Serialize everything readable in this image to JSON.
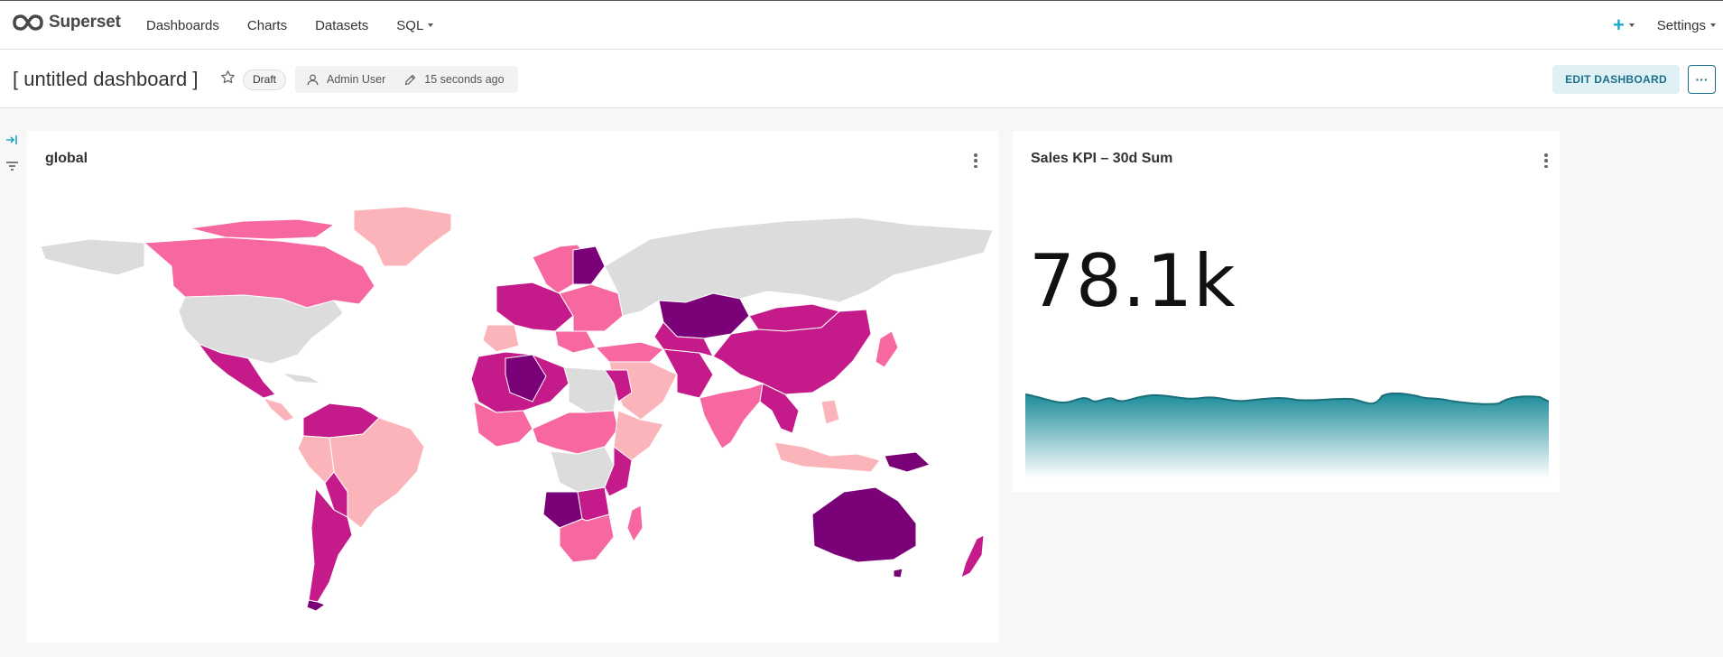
{
  "app": {
    "name": "Superset"
  },
  "nav": {
    "items": [
      {
        "label": "Dashboards"
      },
      {
        "label": "Charts"
      },
      {
        "label": "Datasets"
      },
      {
        "label": "SQL"
      }
    ],
    "settings_label": "Settings",
    "plus_label": "+"
  },
  "dashboard": {
    "title": "[ untitled dashboard ]",
    "status": "Draft",
    "owner": "Admin User",
    "modified": "15 seconds ago",
    "edit_label": "EDIT DASHBOARD",
    "more_label": "···"
  },
  "charts": {
    "map": {
      "title": "global"
    },
    "kpi": {
      "title": "Sales KPI – 30d Sum",
      "value": "78.1k"
    }
  },
  "colors": {
    "accent": "#20a7c9",
    "map_no_data": "#dcdcdc",
    "map_scale": [
      "#fbb4b9",
      "#f768a1",
      "#c51b8a",
      "#7a0177"
    ],
    "sparkline": "#1a8a99"
  }
}
